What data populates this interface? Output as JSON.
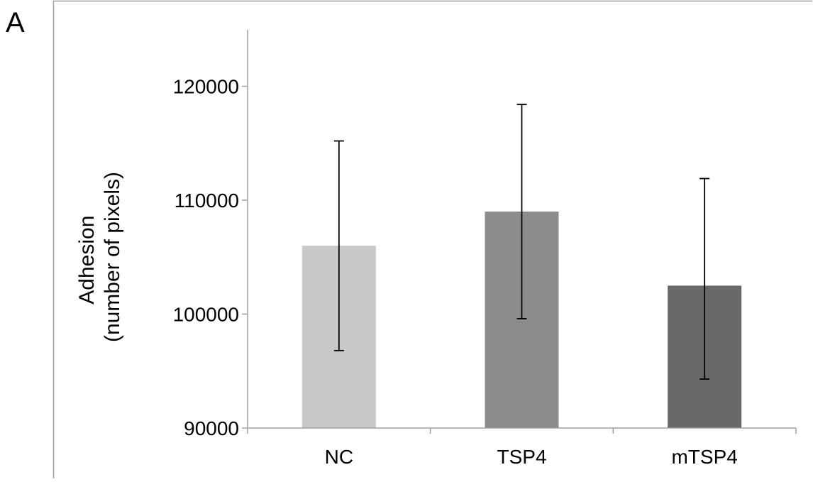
{
  "panel_label": "A",
  "chart_data": {
    "type": "bar",
    "categories": [
      "NC",
      "TSP4",
      "mTSP4"
    ],
    "values": [
      106000,
      109000,
      102500
    ],
    "error_plus": [
      9200,
      9400,
      9400
    ],
    "error_minus": [
      9200,
      9400,
      8200
    ],
    "ylabel_line1": "Adhesion",
    "ylabel_line2": "(number of pixels)",
    "xlabel": "",
    "ylim": [
      90000,
      125000
    ],
    "yticks": [
      90000,
      100000,
      110000,
      120000
    ],
    "ytick_labels": [
      "90000",
      "100000",
      "110000",
      "120000"
    ],
    "grid": false,
    "colors": [
      "#c8c8c8",
      "#8c8c8c",
      "#696969"
    ],
    "error_bar_color": "#000000",
    "axis_color": "#a0a0a0"
  }
}
